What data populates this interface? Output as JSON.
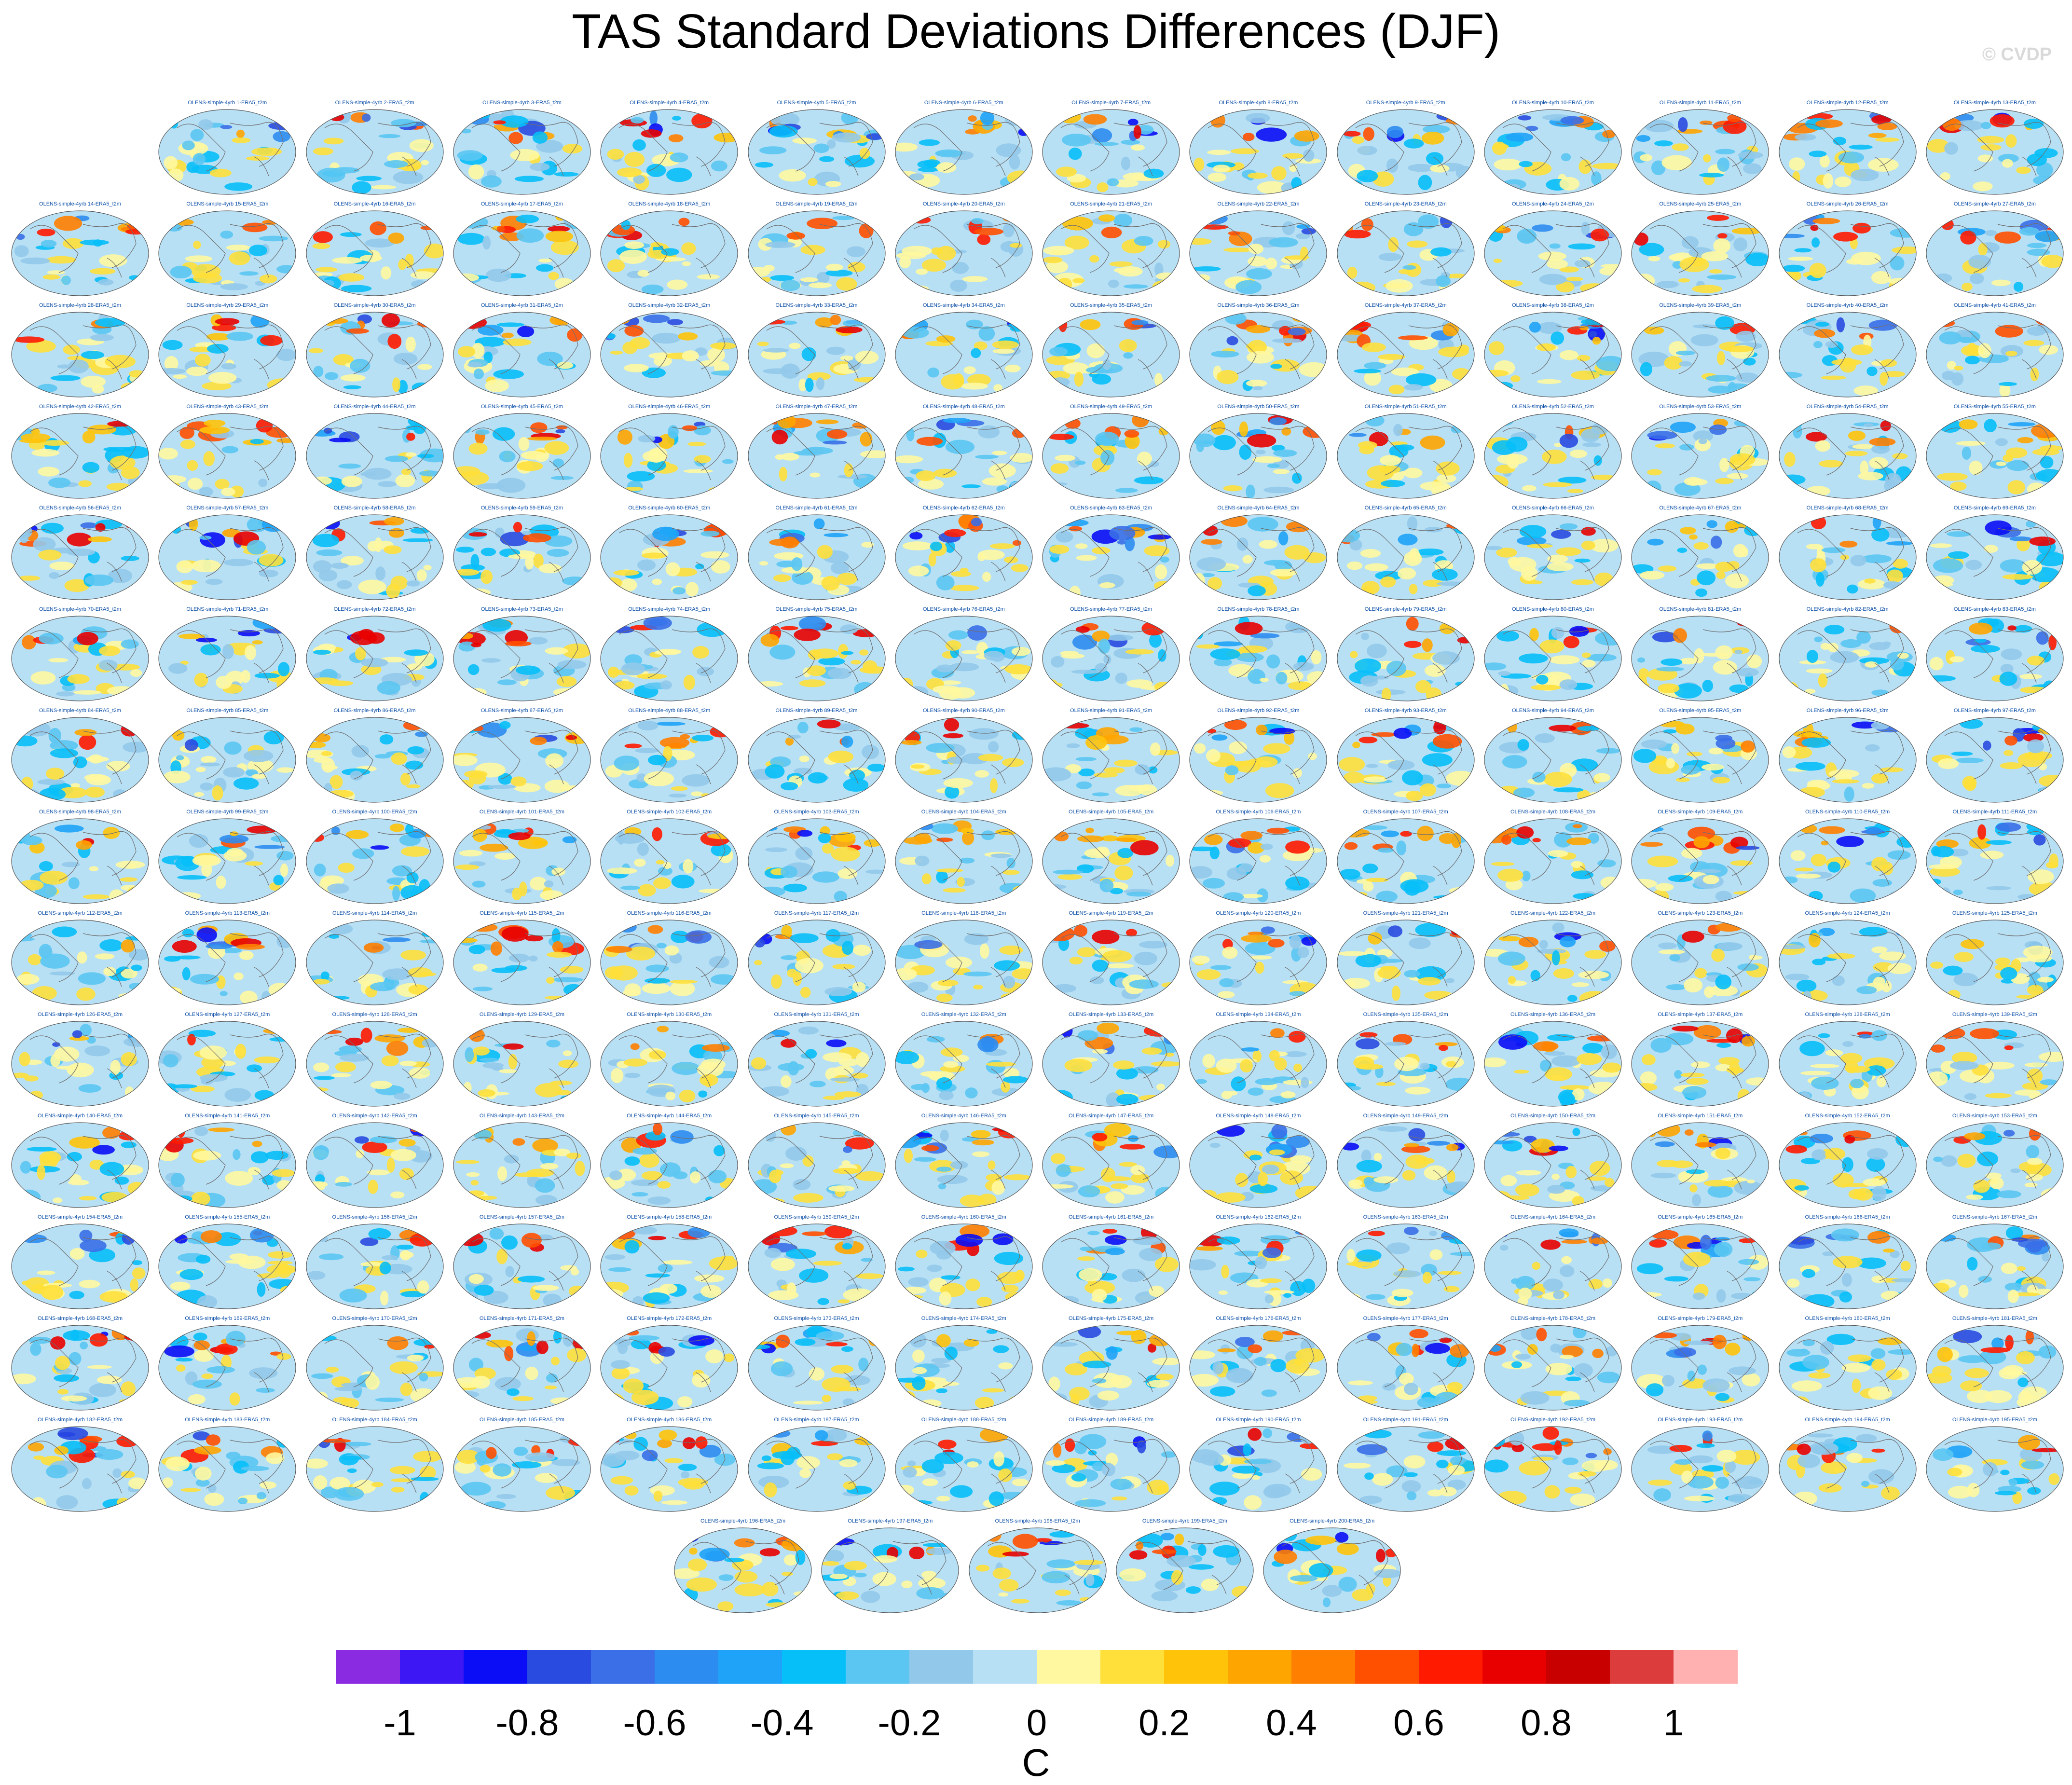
{
  "title": "TAS Standard Deviations Differences (DJF)",
  "watermark": "© CVDP",
  "panel_title_prefix": "OLENS-simple-4yrb ",
  "panel_title_suffix": "-ERA5_t2m",
  "panel_count": 200,
  "colorbar": {
    "colors": [
      "#8a2be2",
      "#3e17f5",
      "#0a0df5",
      "#2a4be0",
      "#3a6fe8",
      "#2d8cf0",
      "#1fa3f8",
      "#07bff8",
      "#5bc6f2",
      "#92c9ea",
      "#b8e0f5",
      "#fff8a0",
      "#ffe03a",
      "#ffc30a",
      "#ffa500",
      "#ff8000",
      "#ff5000",
      "#ff1a00",
      "#e80000",
      "#c80000",
      "#dc3c3c",
      "#ffb0b0"
    ],
    "tick_labels": [
      "-1",
      "-0.8",
      "-0.6",
      "-0.4",
      "-0.2",
      "0",
      "0.2",
      "0.4",
      "0.6",
      "0.8",
      "1"
    ],
    "units": "C"
  }
}
